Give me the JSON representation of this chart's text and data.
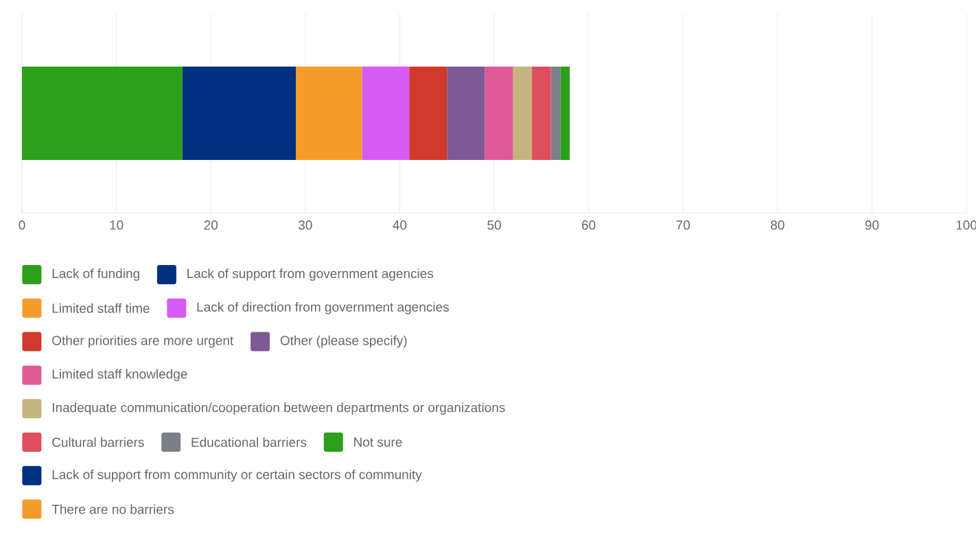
{
  "chart_data": {
    "type": "bar",
    "orientation": "horizontal",
    "stacked": true,
    "categories": [
      null
    ],
    "xlim": [
      0,
      100
    ],
    "xticks": [
      0,
      10,
      20,
      30,
      40,
      50,
      60,
      70,
      80,
      90,
      100
    ],
    "grid": "x",
    "legend": "bottom",
    "tick_labels": "x",
    "series": [
      {
        "name": "Lack of funding",
        "color": "#2ca01c",
        "values": [
          17
        ]
      },
      {
        "name": "Lack of support from government agencies",
        "color": "#00307f",
        "values": [
          12
        ]
      },
      {
        "name": "Limited staff time",
        "color": "#f39c2b",
        "values": [
          7
        ]
      },
      {
        "name": "Lack of direction from government agencies",
        "color": "#d65cf5",
        "values": [
          5
        ]
      },
      {
        "name": "Other priorities are more urgent",
        "color": "#cf3a2c",
        "values": [
          4
        ]
      },
      {
        "name": "Other (please specify)",
        "color": "#7d5a96",
        "values": [
          4
        ]
      },
      {
        "name": "Limited staff knowledge",
        "color": "#de5b95",
        "values": [
          3
        ]
      },
      {
        "name": "Inadequate communication/cooperation between departments or organizations",
        "color": "#c7b37f",
        "values": [
          2
        ]
      },
      {
        "name": "Cultural barriers",
        "color": "#e04d5d",
        "values": [
          2
        ]
      },
      {
        "name": "Educational barriers",
        "color": "#7a8088",
        "values": [
          1
        ]
      },
      {
        "name": "Not sure",
        "color": "#2ca01c",
        "values": [
          1
        ]
      },
      {
        "name": "Lack of support from community or certain sectors of community",
        "color": "#00307f",
        "values": [
          0
        ]
      },
      {
        "name": "There are no barriers",
        "color": "#f39c2b",
        "values": [
          0
        ]
      }
    ]
  }
}
